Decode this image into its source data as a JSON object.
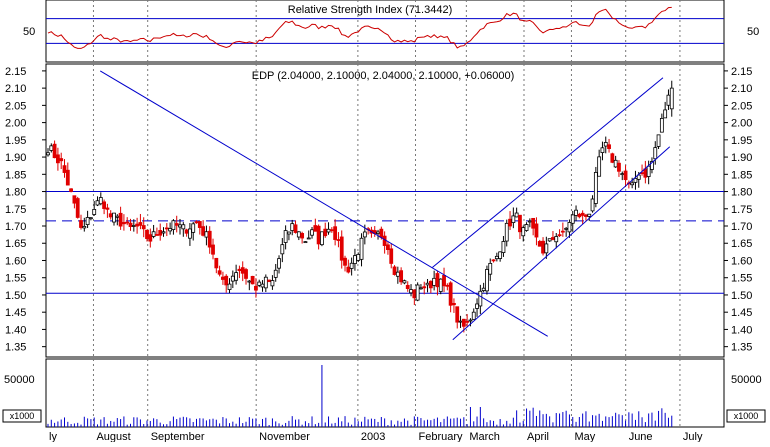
{
  "chart_data": [
    {
      "type": "line",
      "panel": "rsi",
      "title": "Relative Strength Index (71.3442)",
      "ylim": [
        0,
        100
      ],
      "y_ticks": [
        50
      ],
      "reference_lines": [
        70,
        30
      ],
      "note": "RSI oscillator line, red"
    },
    {
      "type": "candlestick",
      "panel": "price",
      "title": "EDP (2.04000, 2.10000, 2.04000, 2.10000, +0.06000)",
      "ylim": [
        1.32,
        2.17
      ],
      "y_ticks": [
        "1.35",
        "1.40",
        "1.45",
        "1.50",
        "1.55",
        "1.60",
        "1.65",
        "1.70",
        "1.75",
        "1.80",
        "1.85",
        "1.90",
        "1.95",
        "2.00",
        "2.05",
        "2.10",
        "2.15"
      ],
      "horizontal_lines": [
        {
          "value": 1.8,
          "style": "solid"
        },
        {
          "value": 1.715,
          "style": "dashed"
        },
        {
          "value": 1.505,
          "style": "solid"
        }
      ],
      "trend_lines": [
        {
          "from": [
            0.08,
            2.15
          ],
          "to": [
            0.74,
            1.38
          ]
        },
        {
          "from": [
            0.57,
            1.58
          ],
          "to": [
            0.91,
            2.13
          ]
        },
        {
          "from": [
            0.6,
            1.37
          ],
          "to": [
            0.92,
            1.93
          ]
        }
      ],
      "close_path": [
        [
          0.0,
          1.93
        ],
        [
          0.02,
          1.88
        ],
        [
          0.03,
          1.82
        ],
        [
          0.04,
          1.75
        ],
        [
          0.05,
          1.68
        ],
        [
          0.06,
          1.72
        ],
        [
          0.07,
          1.76
        ],
        [
          0.08,
          1.78
        ],
        [
          0.09,
          1.73
        ],
        [
          0.1,
          1.72
        ],
        [
          0.11,
          1.71
        ],
        [
          0.12,
          1.69
        ],
        [
          0.13,
          1.7
        ],
        [
          0.14,
          1.68
        ],
        [
          0.15,
          1.66
        ],
        [
          0.16,
          1.68
        ],
        [
          0.17,
          1.69
        ],
        [
          0.18,
          1.7
        ],
        [
          0.19,
          1.7
        ],
        [
          0.2,
          1.69
        ],
        [
          0.21,
          1.7
        ],
        [
          0.22,
          1.71
        ],
        [
          0.23,
          1.68
        ],
        [
          0.24,
          1.65
        ],
        [
          0.25,
          1.57
        ],
        [
          0.26,
          1.52
        ],
        [
          0.27,
          1.55
        ],
        [
          0.28,
          1.58
        ],
        [
          0.29,
          1.56
        ],
        [
          0.3,
          1.53
        ],
        [
          0.31,
          1.52
        ],
        [
          0.32,
          1.54
        ],
        [
          0.33,
          1.53
        ],
        [
          0.34,
          1.6
        ],
        [
          0.35,
          1.67
        ],
        [
          0.36,
          1.7
        ],
        [
          0.37,
          1.68
        ],
        [
          0.38,
          1.66
        ],
        [
          0.39,
          1.68
        ],
        [
          0.4,
          1.66
        ],
        [
          0.41,
          1.69
        ],
        [
          0.42,
          1.7
        ],
        [
          0.43,
          1.63
        ],
        [
          0.44,
          1.57
        ],
        [
          0.45,
          1.6
        ],
        [
          0.46,
          1.64
        ],
        [
          0.47,
          1.68
        ],
        [
          0.48,
          1.66
        ],
        [
          0.49,
          1.68
        ],
        [
          0.5,
          1.65
        ],
        [
          0.51,
          1.58
        ],
        [
          0.52,
          1.55
        ],
        [
          0.53,
          1.52
        ],
        [
          0.54,
          1.5
        ],
        [
          0.55,
          1.53
        ],
        [
          0.56,
          1.52
        ],
        [
          0.57,
          1.55
        ],
        [
          0.58,
          1.53
        ],
        [
          0.59,
          1.51
        ],
        [
          0.6,
          1.45
        ],
        [
          0.61,
          1.4
        ],
        [
          0.62,
          1.42
        ],
        [
          0.63,
          1.47
        ],
        [
          0.64,
          1.52
        ],
        [
          0.65,
          1.58
        ],
        [
          0.66,
          1.6
        ],
        [
          0.67,
          1.66
        ],
        [
          0.68,
          1.71
        ],
        [
          0.69,
          1.73
        ],
        [
          0.7,
          1.68
        ],
        [
          0.71,
          1.7
        ],
        [
          0.72,
          1.66
        ],
        [
          0.73,
          1.63
        ],
        [
          0.74,
          1.65
        ],
        [
          0.75,
          1.68
        ],
        [
          0.76,
          1.67
        ],
        [
          0.77,
          1.72
        ],
        [
          0.78,
          1.74
        ],
        [
          0.79,
          1.72
        ],
        [
          0.8,
          1.75
        ],
        [
          0.81,
          1.86
        ],
        [
          0.82,
          1.94
        ],
        [
          0.83,
          1.9
        ],
        [
          0.84,
          1.88
        ],
        [
          0.85,
          1.84
        ],
        [
          0.86,
          1.8
        ],
        [
          0.87,
          1.86
        ],
        [
          0.88,
          1.85
        ],
        [
          0.89,
          1.88
        ],
        [
          0.9,
          1.96
        ],
        [
          0.91,
          2.04
        ],
        [
          0.92,
          2.1
        ]
      ]
    },
    {
      "type": "bar",
      "panel": "volume",
      "y_ticks": [
        "50000"
      ],
      "unit_label": "x1000",
      "note": "daily volume bars, blue"
    }
  ],
  "x_labels": [
    "ly",
    "August",
    "September",
    "November",
    "2003",
    "February",
    "March",
    "April",
    "May",
    "June",
    "July"
  ],
  "colors": {
    "up": "#000000",
    "down": "#e00000",
    "rsi": "#cc0000",
    "lines": "#0000cc",
    "grid": "#777777"
  }
}
